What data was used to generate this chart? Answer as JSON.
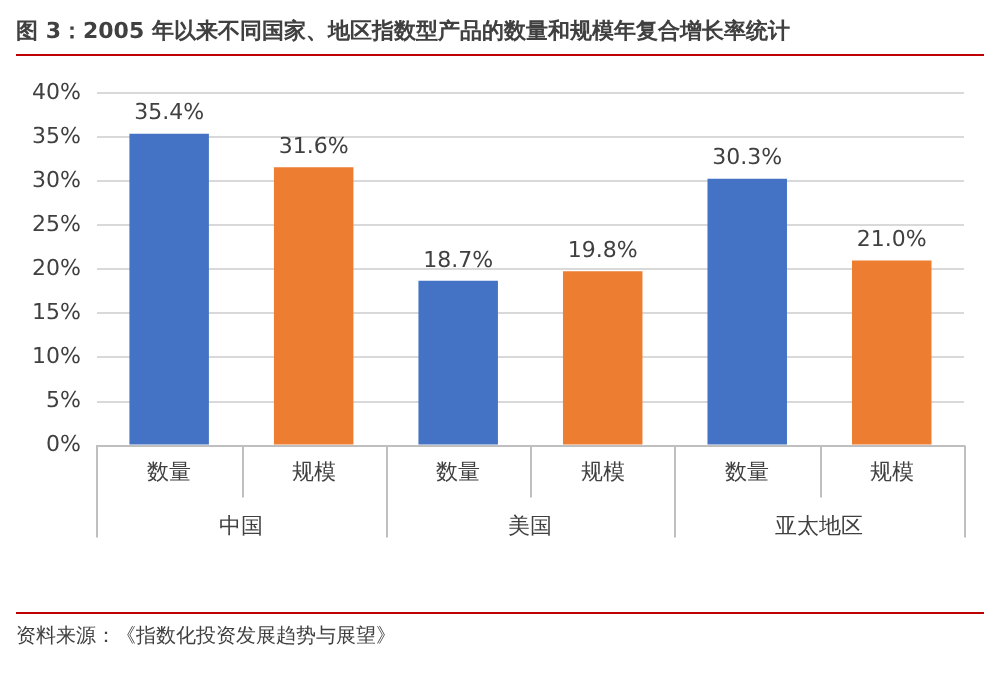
{
  "chart_data": {
    "type": "bar",
    "title": "图 3：2005 年以来不同国家、地区指数型产品的数量和规模年复合增长率统计",
    "categories": [
      "中国",
      "美国",
      "亚太地区"
    ],
    "series": [
      {
        "name": "数量",
        "color": "#4472c4",
        "values": [
          35.4,
          18.7,
          30.3
        ],
        "value_labels": [
          "35.4%",
          "18.7%",
          "30.3%"
        ]
      },
      {
        "name": "规模",
        "color": "#ed7d31",
        "values": [
          31.6,
          19.8,
          21.0
        ],
        "value_labels": [
          "31.6%",
          "19.8%",
          "21.0%"
        ]
      }
    ],
    "ylim": [
      0,
      40
    ],
    "yticks": [
      {
        "value": 0,
        "label": "0%"
      },
      {
        "value": 5,
        "label": "5%"
      },
      {
        "value": 10,
        "label": "10%"
      },
      {
        "value": 15,
        "label": "15%"
      },
      {
        "value": 20,
        "label": "20%"
      },
      {
        "value": 25,
        "label": "25%"
      },
      {
        "value": 30,
        "label": "30%"
      },
      {
        "value": 35,
        "label": "35%"
      },
      {
        "value": 40,
        "label": "40%"
      }
    ],
    "grid": "y",
    "legend": false,
    "annotations": [
      "资料来源：《指数化投资发展趋势与展望》"
    ]
  }
}
